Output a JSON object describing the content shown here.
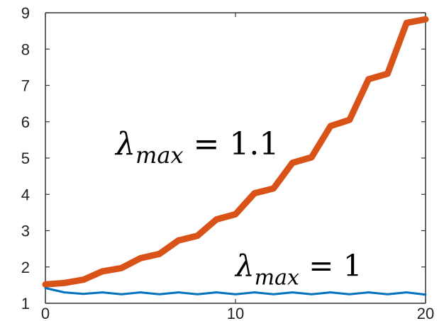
{
  "chart_data": {
    "type": "line",
    "title": "",
    "xlabel": "",
    "ylabel": "",
    "xlim": [
      0,
      20
    ],
    "ylim": [
      1,
      9
    ],
    "x_ticks": [
      "0",
      "10",
      "20"
    ],
    "y_ticks": [
      "1",
      "2",
      "3",
      "4",
      "5",
      "6",
      "7",
      "8",
      "9"
    ],
    "grid": false,
    "series": [
      {
        "color": "#d95319",
        "x": [
          0,
          1,
          2,
          3,
          4,
          5,
          6,
          7,
          8,
          9,
          10,
          11,
          12,
          13,
          14,
          15,
          16,
          17,
          18,
          19,
          20
        ],
        "y": [
          1.52,
          1.56,
          1.65,
          1.88,
          1.97,
          2.24,
          2.36,
          2.73,
          2.86,
          3.31,
          3.45,
          4.03,
          4.16,
          4.87,
          5.02,
          5.88,
          6.05,
          7.17,
          7.32,
          8.72,
          8.82
        ]
      },
      {
        "color": "#0072bd",
        "x": [
          0,
          1,
          2,
          3,
          4,
          5,
          6,
          7,
          8,
          9,
          10,
          11,
          12,
          13,
          14,
          15,
          16,
          17,
          18,
          19,
          20
        ],
        "y": [
          1.42,
          1.3,
          1.26,
          1.3,
          1.25,
          1.3,
          1.25,
          1.3,
          1.25,
          1.3,
          1.25,
          1.3,
          1.25,
          1.3,
          1.25,
          1.3,
          1.25,
          1.3,
          1.25,
          1.3,
          1.24
        ]
      }
    ],
    "annotations": [
      {
        "symbol": "λ",
        "sub": "max",
        "rest": " = 1.1",
        "x": 3.7,
        "y": 5.1
      },
      {
        "symbol": "λ",
        "sub": "max",
        "rest": " = 1",
        "x": 10.0,
        "y": 1.75
      }
    ]
  }
}
